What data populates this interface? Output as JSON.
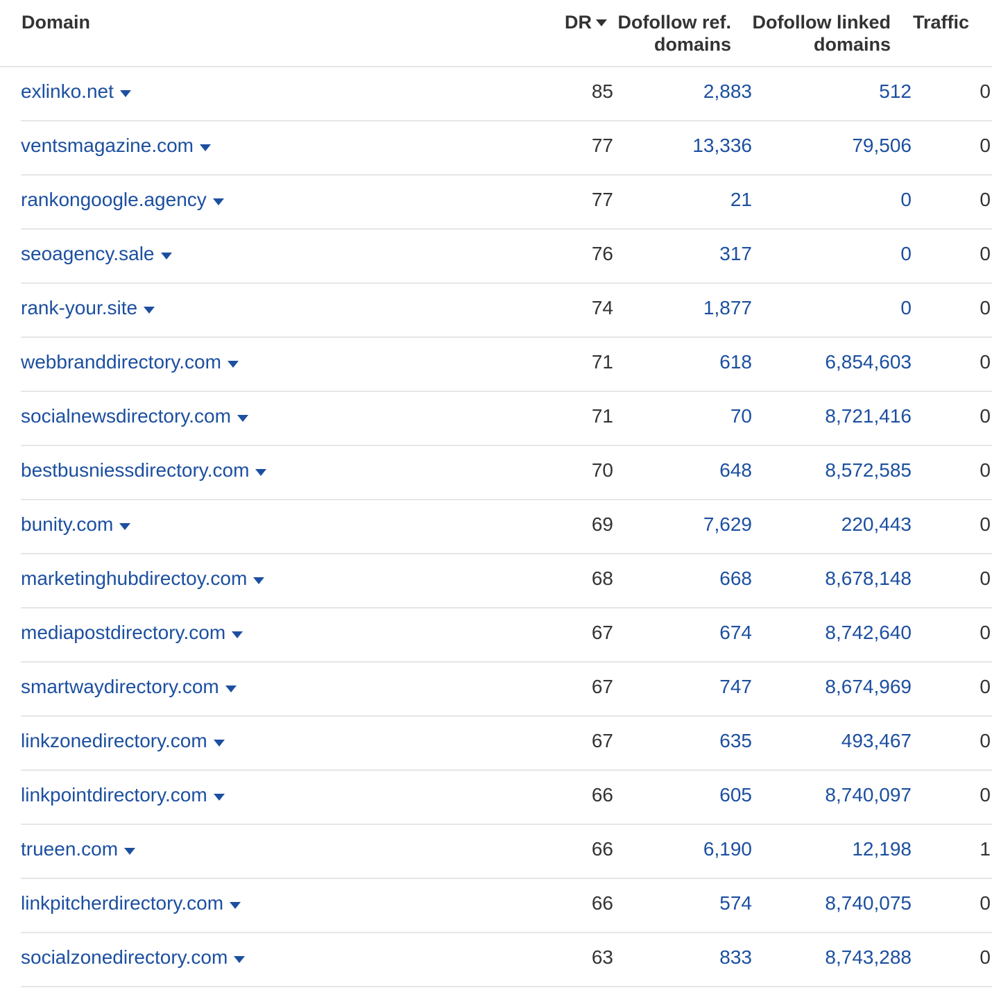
{
  "header": {
    "domain": "Domain",
    "dr": "DR",
    "ref_line1": "Dofollow ref.",
    "ref_line2": "domains",
    "linked_line1": "Dofollow linked",
    "linked_line2": "domains",
    "traffic": "Traffic"
  },
  "colors": {
    "link": "#1c4fa0",
    "text": "#333333",
    "divider": "#e6e6e6"
  },
  "rows": [
    {
      "domain": "exlinko.net",
      "dr": "85",
      "ref": "2,883",
      "linked": "512",
      "traffic": "0"
    },
    {
      "domain": "ventsmagazine.com",
      "dr": "77",
      "ref": "13,336",
      "linked": "79,506",
      "traffic": "0"
    },
    {
      "domain": "rankongoogle.agency",
      "dr": "77",
      "ref": "21",
      "linked": "0",
      "traffic": "0"
    },
    {
      "domain": "seoagency.sale",
      "dr": "76",
      "ref": "317",
      "linked": "0",
      "traffic": "0"
    },
    {
      "domain": "rank-your.site",
      "dr": "74",
      "ref": "1,877",
      "linked": "0",
      "traffic": "0"
    },
    {
      "domain": "webbranddirectory.com",
      "dr": "71",
      "ref": "618",
      "linked": "6,854,603",
      "traffic": "0"
    },
    {
      "domain": "socialnewsdirectory.com",
      "dr": "71",
      "ref": "70",
      "linked": "8,721,416",
      "traffic": "0"
    },
    {
      "domain": "bestbusniessdirectory.com",
      "dr": "70",
      "ref": "648",
      "linked": "8,572,585",
      "traffic": "0"
    },
    {
      "domain": "bunity.com",
      "dr": "69",
      "ref": "7,629",
      "linked": "220,443",
      "traffic": "0"
    },
    {
      "domain": "marketinghubdirectoy.com",
      "dr": "68",
      "ref": "668",
      "linked": "8,678,148",
      "traffic": "0"
    },
    {
      "domain": "mediapostdirectory.com",
      "dr": "67",
      "ref": "674",
      "linked": "8,742,640",
      "traffic": "0"
    },
    {
      "domain": "smartwaydirectory.com",
      "dr": "67",
      "ref": "747",
      "linked": "8,674,969",
      "traffic": "0"
    },
    {
      "domain": "linkzonedirectory.com",
      "dr": "67",
      "ref": "635",
      "linked": "493,467",
      "traffic": "0"
    },
    {
      "domain": "linkpointdirectory.com",
      "dr": "66",
      "ref": "605",
      "linked": "8,740,097",
      "traffic": "0"
    },
    {
      "domain": "trueen.com",
      "dr": "66",
      "ref": "6,190",
      "linked": "12,198",
      "traffic": "1"
    },
    {
      "domain": "linkpitcherdirectory.com",
      "dr": "66",
      "ref": "574",
      "linked": "8,740,075",
      "traffic": "0"
    },
    {
      "domain": "socialzonedirectory.com",
      "dr": "63",
      "ref": "833",
      "linked": "8,743,288",
      "traffic": "0"
    }
  ]
}
